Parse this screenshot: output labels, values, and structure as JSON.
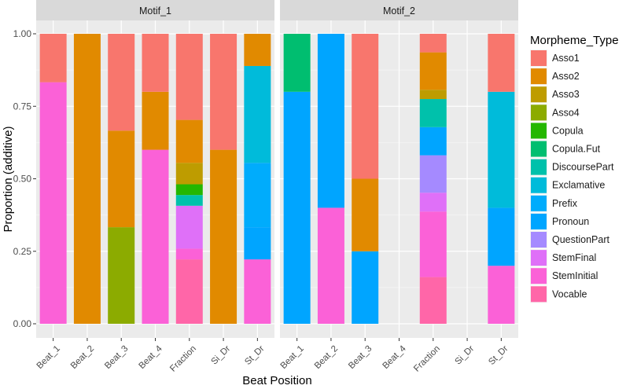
{
  "chart_data": {
    "type": "bar",
    "stacked": true,
    "xlabel": "Beat Position",
    "ylabel": "Proportion (additive)",
    "ylim": [
      0,
      1
    ],
    "yticks": [
      "0.00",
      "0.25",
      "0.50",
      "0.75",
      "1.00"
    ],
    "yticks_values": [
      0,
      0.25,
      0.5,
      0.75,
      1.0
    ],
    "categories": [
      "Beat_1",
      "Beat_2",
      "Beat_3",
      "Beat_4",
      "Fraction",
      "Si_Dr",
      "St_Dr"
    ],
    "legend": {
      "title": "Morpheme_Type",
      "position": "right",
      "entries": [
        {
          "name": "Asso1",
          "color": "#F8766D"
        },
        {
          "name": "Asso2",
          "color": "#E18A00"
        },
        {
          "name": "Asso3",
          "color": "#BE9C00"
        },
        {
          "name": "Asso4",
          "color": "#8CAB00"
        },
        {
          "name": "Copula",
          "color": "#24B700"
        },
        {
          "name": "Copula.Fut",
          "color": "#00BE70"
        },
        {
          "name": "DiscoursePart",
          "color": "#00C1AB"
        },
        {
          "name": "Exclamative",
          "color": "#00BBDA"
        },
        {
          "name": "Prefix",
          "color": "#00ACFC"
        },
        {
          "name": "Pronoun",
          "color": "#00A5FF"
        },
        {
          "name": "QuestionPart",
          "color": "#A58AFF"
        },
        {
          "name": "StemFinal",
          "color": "#DF70F8"
        },
        {
          "name": "StemInitial",
          "color": "#FB61D7"
        },
        {
          "name": "Vocable",
          "color": "#FF66A8"
        }
      ]
    },
    "panels": [
      {
        "title": "Motif_1",
        "bars": [
          {
            "category": "Beat_1",
            "segments": [
              {
                "type": "StemInitial",
                "value": 0.833
              },
              {
                "type": "Asso1",
                "value": 0.167
              }
            ]
          },
          {
            "category": "Beat_2",
            "segments": [
              {
                "type": "Asso2",
                "value": 1.0
              }
            ]
          },
          {
            "category": "Beat_3",
            "segments": [
              {
                "type": "Asso4",
                "value": 0.333
              },
              {
                "type": "Asso2",
                "value": 0.333
              },
              {
                "type": "Asso1",
                "value": 0.334
              }
            ]
          },
          {
            "category": "Beat_4",
            "segments": [
              {
                "type": "StemInitial",
                "value": 0.6
              },
              {
                "type": "Asso2",
                "value": 0.2
              },
              {
                "type": "Asso1",
                "value": 0.2
              }
            ]
          },
          {
            "category": "Fraction",
            "segments": [
              {
                "type": "Vocable",
                "value": 0.222
              },
              {
                "type": "StemInitial",
                "value": 0.037
              },
              {
                "type": "StemFinal",
                "value": 0.148
              },
              {
                "type": "DiscoursePart",
                "value": 0.037
              },
              {
                "type": "Copula",
                "value": 0.037
              },
              {
                "type": "Asso3",
                "value": 0.074
              },
              {
                "type": "Asso2",
                "value": 0.148
              },
              {
                "type": "Asso1",
                "value": 0.297
              }
            ]
          },
          {
            "category": "Si_Dr",
            "segments": [
              {
                "type": "Asso2",
                "value": 0.6
              },
              {
                "type": "Asso1",
                "value": 0.4
              }
            ]
          },
          {
            "category": "St_Dr",
            "segments": [
              {
                "type": "StemInitial",
                "value": 0.222
              },
              {
                "type": "Pronoun",
                "value": 0.111
              },
              {
                "type": "Prefix",
                "value": 0.222
              },
              {
                "type": "Exclamative",
                "value": 0.334
              },
              {
                "type": "Asso2",
                "value": 0.111
              }
            ]
          }
        ]
      },
      {
        "title": "Motif_2",
        "bars": [
          {
            "category": "Beat_1",
            "segments": [
              {
                "type": "Pronoun",
                "value": 0.8
              },
              {
                "type": "Copula.Fut",
                "value": 0.2
              }
            ]
          },
          {
            "category": "Beat_2",
            "segments": [
              {
                "type": "StemInitial",
                "value": 0.4
              },
              {
                "type": "Pronoun",
                "value": 0.6
              }
            ]
          },
          {
            "category": "Beat_3",
            "segments": [
              {
                "type": "Pronoun",
                "value": 0.25
              },
              {
                "type": "Asso2",
                "value": 0.25
              },
              {
                "type": "Asso1",
                "value": 0.5
              }
            ]
          },
          {
            "category": "Beat_4",
            "segments": []
          },
          {
            "category": "Fraction",
            "segments": [
              {
                "type": "Vocable",
                "value": 0.161
              },
              {
                "type": "StemInitial",
                "value": 0.226
              },
              {
                "type": "StemFinal",
                "value": 0.065
              },
              {
                "type": "QuestionPart",
                "value": 0.129
              },
              {
                "type": "Pronoun",
                "value": 0.097
              },
              {
                "type": "DiscoursePart",
                "value": 0.097
              },
              {
                "type": "Asso3",
                "value": 0.032
              },
              {
                "type": "Asso2",
                "value": 0.129
              },
              {
                "type": "Asso1",
                "value": 0.064
              }
            ]
          },
          {
            "category": "Si_Dr",
            "segments": []
          },
          {
            "category": "St_Dr",
            "segments": [
              {
                "type": "StemInitial",
                "value": 0.2
              },
              {
                "type": "Pronoun",
                "value": 0.2
              },
              {
                "type": "Exclamative",
                "value": 0.4
              },
              {
                "type": "Asso1",
                "value": 0.2
              }
            ]
          }
        ]
      }
    ]
  }
}
